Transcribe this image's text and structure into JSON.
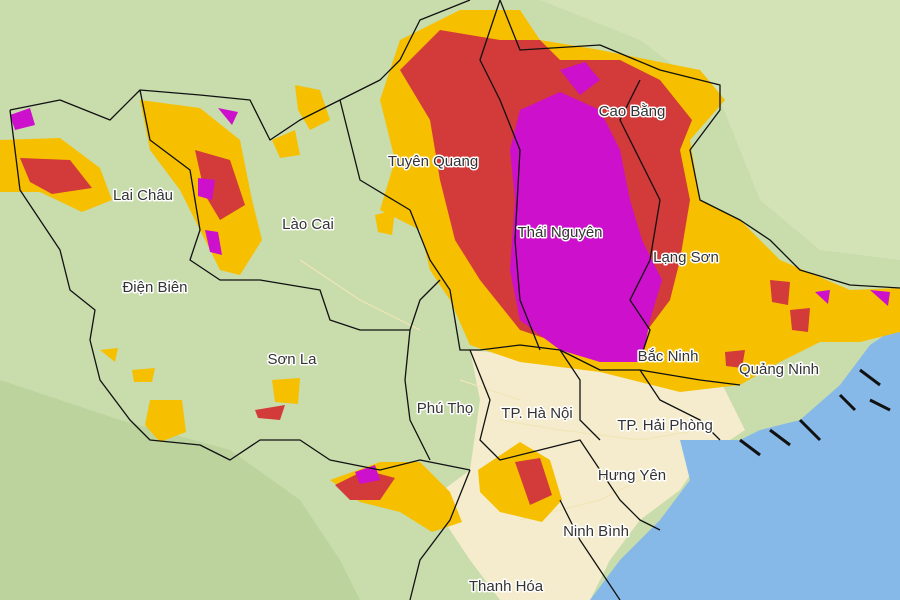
{
  "labels": [
    "Lai Châu",
    "Điện Biên",
    "Lào Cai",
    "Tuyên Quang",
    "Cao Bằng",
    "Thái Nguyên",
    "Lạng Sơn",
    "Sơn La",
    "Bắc Ninh",
    "Quảng Ninh",
    "Phú Thọ",
    "TP. Hà Nội",
    "TP. Hải Phòng",
    "Hưng Yên",
    "Ninh Bình",
    "Thanh Hóa"
  ]
}
